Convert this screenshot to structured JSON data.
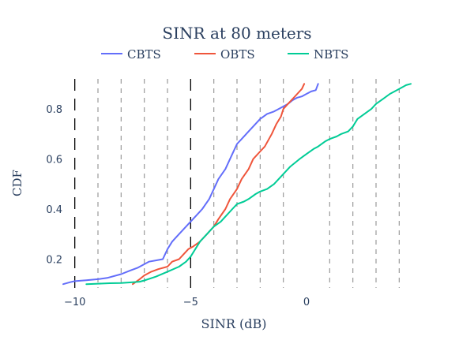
{
  "chart_data": {
    "type": "line",
    "title": "SINR at 80 meters",
    "xlabel": "SINR (dB)",
    "ylabel": "CDF",
    "xlim": [
      -10.5,
      4.5
    ],
    "ylim": [
      0.085,
      0.92
    ],
    "x_ticks": [
      -10,
      -5,
      0
    ],
    "x_tick_labels": [
      "−10",
      "−5",
      "0"
    ],
    "y_ticks": [
      0.2,
      0.4,
      0.6,
      0.8
    ],
    "y_tick_labels": [
      "0.2",
      "0.4",
      "0.6",
      "0.8"
    ],
    "legend_position": "top-center",
    "series": [
      {
        "name": "CBTS",
        "color": "#636efa",
        "x": [
          -10.6,
          -10.2,
          -10.0,
          -9.5,
          -9.0,
          -8.6,
          -8.0,
          -7.6,
          -7.3,
          -7.0,
          -6.8,
          -6.5,
          -6.2,
          -6.0,
          -5.8,
          -5.6,
          -5.4,
          -5.2,
          -5.0,
          -4.8,
          -4.5,
          -4.2,
          -4.0,
          -3.8,
          -3.5,
          -3.2,
          -3.0,
          -2.8,
          -2.5,
          -2.2,
          -2.0,
          -1.7,
          -1.4,
          -1.2,
          -1.0,
          -0.8,
          -0.6,
          -0.4,
          -0.2,
          0.0,
          0.2,
          0.4,
          0.5
        ],
        "y": [
          0.1,
          0.108,
          0.112,
          0.116,
          0.12,
          0.125,
          0.14,
          0.155,
          0.165,
          0.18,
          0.19,
          0.195,
          0.2,
          0.24,
          0.27,
          0.29,
          0.31,
          0.33,
          0.35,
          0.37,
          0.4,
          0.44,
          0.48,
          0.52,
          0.56,
          0.62,
          0.66,
          0.68,
          0.71,
          0.74,
          0.76,
          0.78,
          0.79,
          0.8,
          0.81,
          0.82,
          0.835,
          0.845,
          0.85,
          0.86,
          0.87,
          0.875,
          0.9
        ]
      },
      {
        "name": "OBTS",
        "color": "#ef553b",
        "x": [
          -7.5,
          -7.2,
          -7.0,
          -6.7,
          -6.4,
          -6.0,
          -5.8,
          -5.5,
          -5.3,
          -5.1,
          -4.9,
          -4.6,
          -4.3,
          -4.0,
          -3.8,
          -3.5,
          -3.3,
          -3.0,
          -2.8,
          -2.5,
          -2.3,
          -2.0,
          -1.8,
          -1.5,
          -1.3,
          -1.1,
          -1.0,
          -0.8,
          -0.6,
          -0.4,
          -0.2,
          -0.1
        ],
        "y": [
          0.1,
          0.12,
          0.135,
          0.15,
          0.16,
          0.17,
          0.19,
          0.2,
          0.22,
          0.24,
          0.25,
          0.27,
          0.3,
          0.33,
          0.36,
          0.4,
          0.44,
          0.48,
          0.52,
          0.56,
          0.6,
          0.63,
          0.65,
          0.7,
          0.74,
          0.77,
          0.8,
          0.82,
          0.84,
          0.86,
          0.88,
          0.9
        ]
      },
      {
        "name": "NBTS",
        "color": "#00cc96",
        "x": [
          -9.5,
          -9.0,
          -8.5,
          -8.0,
          -7.5,
          -7.2,
          -7.0,
          -6.5,
          -6.0,
          -5.5,
          -5.2,
          -5.0,
          -4.8,
          -4.6,
          -4.3,
          -4.0,
          -3.7,
          -3.5,
          -3.2,
          -3.0,
          -2.7,
          -2.5,
          -2.2,
          -2.0,
          -1.7,
          -1.4,
          -1.0,
          -0.7,
          -0.3,
          0.0,
          0.3,
          0.5,
          0.8,
          1.0,
          1.3,
          1.5,
          1.8,
          2.0,
          2.2,
          2.5,
          2.8,
          3.0,
          3.3,
          3.6,
          4.0,
          4.3,
          4.5
        ],
        "y": [
          0.1,
          0.102,
          0.104,
          0.105,
          0.108,
          0.11,
          0.115,
          0.13,
          0.15,
          0.17,
          0.19,
          0.21,
          0.24,
          0.27,
          0.3,
          0.33,
          0.35,
          0.37,
          0.4,
          0.42,
          0.43,
          0.44,
          0.46,
          0.47,
          0.48,
          0.5,
          0.54,
          0.57,
          0.6,
          0.62,
          0.64,
          0.65,
          0.67,
          0.68,
          0.69,
          0.7,
          0.71,
          0.73,
          0.76,
          0.78,
          0.8,
          0.82,
          0.84,
          0.86,
          0.88,
          0.895,
          0.9
        ]
      }
    ],
    "vertical_lines": [
      {
        "x": -10,
        "style": "long-dash",
        "color": "#000000"
      },
      {
        "x": -9,
        "style": "dash",
        "color": "#999999"
      },
      {
        "x": -8,
        "style": "dash",
        "color": "#999999"
      },
      {
        "x": -7,
        "style": "dash",
        "color": "#999999"
      },
      {
        "x": -6,
        "style": "dash",
        "color": "#999999"
      },
      {
        "x": -5,
        "style": "long-dash",
        "color": "#000000"
      },
      {
        "x": -4,
        "style": "dash",
        "color": "#999999"
      },
      {
        "x": -3,
        "style": "dash",
        "color": "#999999"
      },
      {
        "x": -2,
        "style": "dash",
        "color": "#999999"
      },
      {
        "x": -1,
        "style": "dash",
        "color": "#999999"
      },
      {
        "x": 1,
        "style": "dash",
        "color": "#999999"
      },
      {
        "x": 2,
        "style": "dash",
        "color": "#999999"
      },
      {
        "x": 3,
        "style": "dash",
        "color": "#999999"
      },
      {
        "x": 4,
        "style": "dash",
        "color": "#999999"
      }
    ]
  }
}
